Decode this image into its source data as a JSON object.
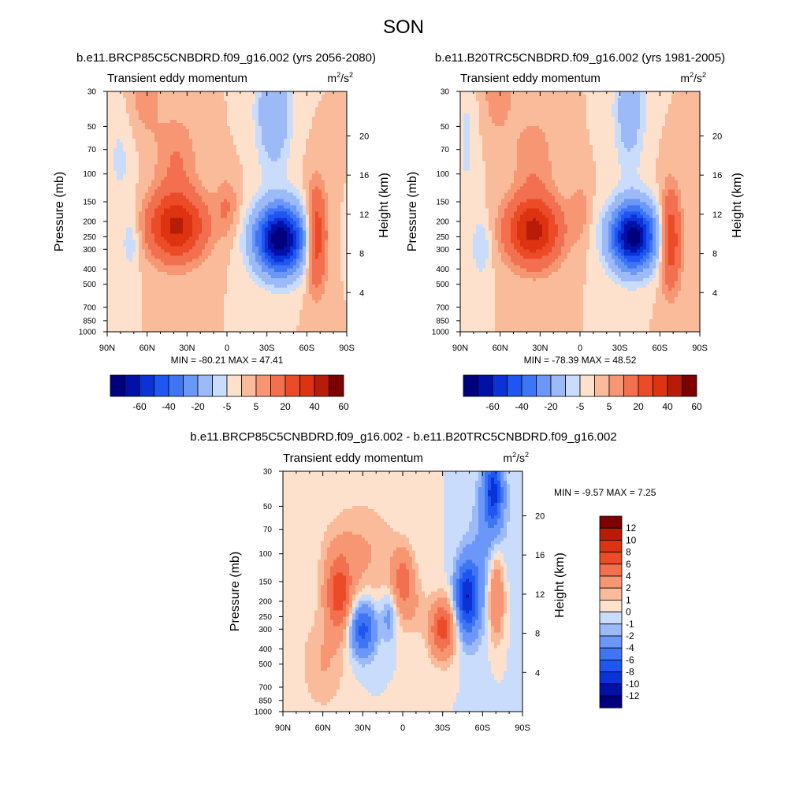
{
  "figure_title": "SON",
  "chart_data": [
    {
      "id": "p1",
      "type": "heatmap",
      "subtitle": "b.e11.BRCP85C5CNBDRD.f09_g16.002 (yrs 2056-2080)",
      "left_label": "Transient eddy momentum",
      "units": {
        "base": "m",
        "exp1": "2",
        "sep": "/s",
        "exp2": "2"
      },
      "ylabel": "Pressure (mb)",
      "ylabel_right": "Height (km)",
      "x_ticks": [
        "90N",
        "60N",
        "30N",
        "0",
        "30S",
        "60S",
        "90S"
      ],
      "x_values": [
        90,
        60,
        30,
        0,
        -30,
        -60,
        -90
      ],
      "y_ticks": [
        "30",
        "50",
        "70",
        "100",
        "150",
        "200",
        "250",
        "300",
        "400",
        "500",
        "700",
        "850",
        "1000"
      ],
      "y_values": [
        30,
        50,
        70,
        100,
        150,
        200,
        250,
        300,
        400,
        500,
        700,
        850,
        1000
      ],
      "height_ticks": [
        "20",
        "16",
        "12",
        "8",
        "4"
      ],
      "height_values": [
        20,
        16,
        12,
        8,
        4
      ],
      "min_max_text": "MIN = -80.21  MAX = 47.41",
      "min": -80.21,
      "max": 47.41,
      "xlim": [
        90,
        -90
      ],
      "ylim": [
        1000,
        30
      ],
      "features": [
        {
          "lat": 38,
          "p": 215,
          "amp": 42,
          "sx": 15,
          "sy": 0.34
        },
        {
          "lat": 38,
          "p": 80,
          "amp": 10,
          "sx": 11,
          "sy": 0.45
        },
        {
          "lat": 62,
          "p": 30,
          "amp": 8,
          "sx": 9,
          "sy": 0.5
        },
        {
          "lat": 0,
          "p": 160,
          "amp": 10,
          "sx": 6,
          "sy": 0.3
        },
        {
          "lat": -40,
          "p": 260,
          "amp": -78,
          "sx": 13,
          "sy": 0.34
        },
        {
          "lat": -35,
          "p": 40,
          "amp": -20,
          "sx": 9,
          "sy": 0.6
        },
        {
          "lat": -67,
          "p": 250,
          "amp": 32,
          "sx": 5.5,
          "sy": 0.5
        },
        {
          "lat": 72,
          "p": 270,
          "amp": -9,
          "sx": 5,
          "sy": 0.3
        },
        {
          "lat": 80,
          "p": 80,
          "amp": -6,
          "sx": 8,
          "sy": 0.6
        }
      ]
    },
    {
      "id": "p2",
      "type": "heatmap",
      "subtitle": "b.e11.B20TRC5CNBDRD.f09_g16.002 (yrs 1981-2005)",
      "left_label": "Transient eddy momentum",
      "units": {
        "base": "m",
        "exp1": "2",
        "sep": "/s",
        "exp2": "2"
      },
      "ylabel": "Pressure (mb)",
      "ylabel_right": "Height (km)",
      "x_ticks": [
        "90N",
        "60N",
        "30N",
        "0",
        "30S",
        "60S",
        "90S"
      ],
      "x_values": [
        90,
        60,
        30,
        0,
        -30,
        -60,
        -90
      ],
      "y_ticks": [
        "30",
        "50",
        "70",
        "100",
        "150",
        "200",
        "250",
        "300",
        "400",
        "500",
        "700",
        "850",
        "1000"
      ],
      "y_values": [
        30,
        50,
        70,
        100,
        150,
        200,
        250,
        300,
        400,
        500,
        700,
        850,
        1000
      ],
      "height_ticks": [
        "20",
        "16",
        "12",
        "8",
        "4"
      ],
      "height_values": [
        20,
        16,
        12,
        8,
        4
      ],
      "min_max_text": "MIN = -78.39  MAX = 48.52",
      "min": -78.39,
      "max": 48.52,
      "xlim": [
        90,
        -90
      ],
      "ylim": [
        1000,
        30
      ],
      "features": [
        {
          "lat": 35,
          "p": 230,
          "amp": 44,
          "sx": 14,
          "sy": 0.34
        },
        {
          "lat": 35,
          "p": 80,
          "amp": 9,
          "sx": 11,
          "sy": 0.45
        },
        {
          "lat": 62,
          "p": 30,
          "amp": 8,
          "sx": 9,
          "sy": 0.5
        },
        {
          "lat": 0,
          "p": 170,
          "amp": 8,
          "sx": 5,
          "sy": 0.3
        },
        {
          "lat": -40,
          "p": 250,
          "amp": -76,
          "sx": 12,
          "sy": 0.33
        },
        {
          "lat": -37,
          "p": 40,
          "amp": -16,
          "sx": 8,
          "sy": 0.6
        },
        {
          "lat": -68,
          "p": 260,
          "amp": 30,
          "sx": 5.5,
          "sy": 0.5
        },
        {
          "lat": 74,
          "p": 290,
          "amp": -10,
          "sx": 5,
          "sy": 0.3
        },
        {
          "lat": 85,
          "p": 60,
          "amp": -6,
          "sx": 6,
          "sy": 0.8
        }
      ]
    },
    {
      "id": "p3",
      "type": "heatmap",
      "subtitle": "b.e11.BRCP85C5CNBDRD.f09_g16.002 - b.e11.B20TRC5CNBDRD.f09_g16.002",
      "left_label": "Transient eddy momentum",
      "units": {
        "base": "m",
        "exp1": "2",
        "sep": "/s",
        "exp2": "2"
      },
      "ylabel": "Pressure (mb)",
      "ylabel_right": "Height (km)",
      "x_ticks": [
        "90N",
        "60N",
        "30N",
        "0",
        "30S",
        "60S",
        "90S"
      ],
      "x_values": [
        90,
        60,
        30,
        0,
        -30,
        -60,
        -90
      ],
      "y_ticks": [
        "30",
        "50",
        "70",
        "100",
        "150",
        "200",
        "250",
        "300",
        "400",
        "500",
        "700",
        "850",
        "1000"
      ],
      "y_values": [
        30,
        50,
        70,
        100,
        150,
        200,
        250,
        300,
        400,
        500,
        700,
        850,
        1000
      ],
      "height_ticks": [
        "20",
        "16",
        "12",
        "8",
        "4"
      ],
      "height_values": [
        20,
        16,
        12,
        8,
        4
      ],
      "min_max_text": "MIN =  -9.57  MAX =   7.25",
      "min": -9.57,
      "max": 7.25,
      "xlim": [
        90,
        -90
      ],
      "ylim": [
        1000,
        30
      ],
      "features": [
        {
          "lat": 48,
          "p": 180,
          "amp": 6.5,
          "sx": 7,
          "sy": 0.4
        },
        {
          "lat": 32,
          "p": 100,
          "amp": 2.2,
          "sx": 20,
          "sy": 0.55
        },
        {
          "lat": 30,
          "p": 300,
          "amp": -7,
          "sx": 7,
          "sy": 0.28
        },
        {
          "lat": 0,
          "p": 140,
          "amp": 4,
          "sx": 6,
          "sy": 0.3
        },
        {
          "lat": 10,
          "p": 250,
          "amp": -3,
          "sx": 4,
          "sy": 0.25
        },
        {
          "lat": -5,
          "p": 220,
          "amp": 2,
          "sx": 8,
          "sy": 0.3
        },
        {
          "lat": -30,
          "p": 300,
          "amp": 7,
          "sx": 7,
          "sy": 0.3
        },
        {
          "lat": -48,
          "p": 190,
          "amp": -9.5,
          "sx": 6,
          "sy": 0.38
        },
        {
          "lat": -68,
          "p": 40,
          "amp": -8,
          "sx": 5,
          "sy": 0.35
        },
        {
          "lat": -65,
          "p": 110,
          "amp": -3,
          "sx": 10,
          "sy": 0.8
        },
        {
          "lat": -70,
          "p": 180,
          "amp": 6,
          "sx": 5,
          "sy": 0.5
        },
        {
          "lat": 60,
          "p": 500,
          "amp": 2,
          "sx": 12,
          "sy": 0.5
        }
      ]
    }
  ],
  "colorbars": [
    {
      "id": "cb1",
      "orientation": "horizontal",
      "levels": [
        -70,
        -60,
        -50,
        -40,
        -30,
        -20,
        -10,
        -5,
        0,
        5,
        10,
        20,
        30,
        40,
        50,
        60
      ],
      "labels": [
        "-60",
        "-40",
        "-20",
        "-5",
        "5",
        "20",
        "40",
        "60"
      ],
      "label_levels": [
        -60,
        -40,
        -20,
        -5,
        5,
        20,
        40,
        60
      ]
    },
    {
      "id": "cb2",
      "orientation": "horizontal",
      "levels": [
        -70,
        -60,
        -50,
        -40,
        -30,
        -20,
        -10,
        -5,
        0,
        5,
        10,
        20,
        30,
        40,
        50,
        60
      ],
      "labels": [
        "-60",
        "-40",
        "-20",
        "-5",
        "5",
        "20",
        "40",
        "60"
      ],
      "label_levels": [
        -60,
        -40,
        -20,
        -5,
        5,
        20,
        40,
        60
      ]
    },
    {
      "id": "cb3",
      "orientation": "vertical",
      "levels": [
        -12,
        -10,
        -8,
        -6,
        -4,
        -2,
        -1,
        0,
        1,
        2,
        4,
        6,
        8,
        10,
        12
      ],
      "labels": [
        "12",
        "10",
        "8",
        "6",
        "4",
        "2",
        "1",
        "0",
        "-1",
        "-2",
        "-4",
        "-6",
        "-8",
        "-10",
        "-12"
      ]
    }
  ],
  "colors": {
    "palette": [
      "#00007f",
      "#0010a8",
      "#0a32d6",
      "#1f55f0",
      "#3d75f5",
      "#6a97f8",
      "#9cb9f8",
      "#c9dcfb",
      "#fde1cc",
      "#f9bb9a",
      "#f69673",
      "#f2704f",
      "#ec4b27",
      "#dd3311",
      "#b81c08",
      "#7f0000"
    ],
    "palette_small": [
      "#00007f",
      "#0010a8",
      "#0a32d6",
      "#1f55f0",
      "#3d75f5",
      "#6a97f8",
      "#9cb9f8",
      "#c9dcfb",
      "#fde1cc",
      "#f9bb9a",
      "#f69673",
      "#f2704f",
      "#ec4b27",
      "#dd3311",
      "#b81c08",
      "#7f0000"
    ]
  }
}
